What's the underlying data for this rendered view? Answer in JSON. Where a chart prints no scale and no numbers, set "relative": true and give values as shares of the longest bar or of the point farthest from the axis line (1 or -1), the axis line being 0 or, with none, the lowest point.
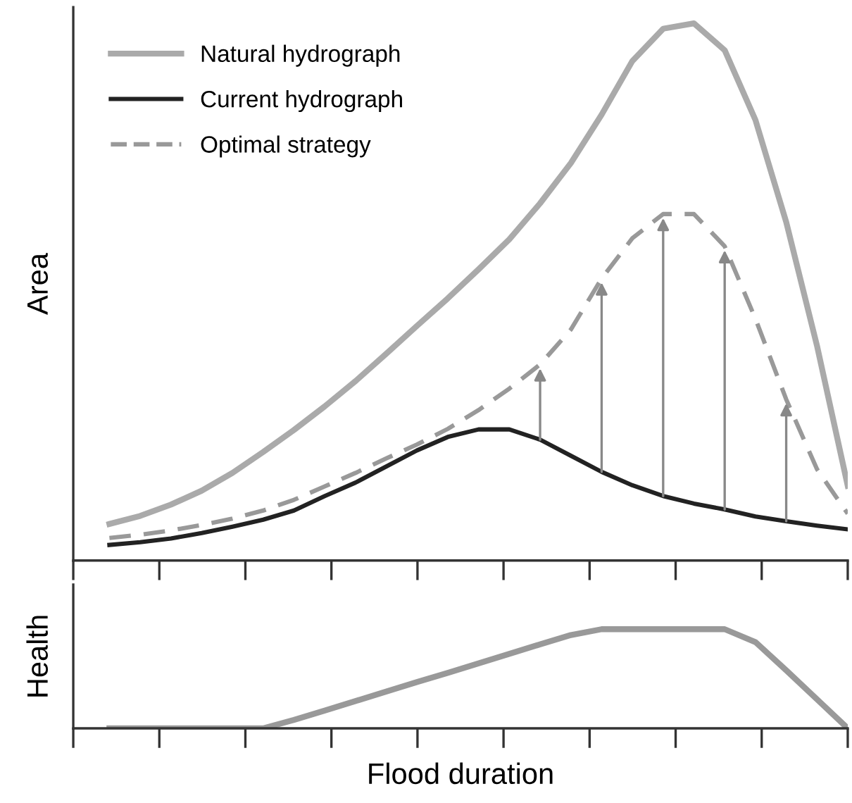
{
  "chart_data": [
    {
      "type": "line",
      "relative": true,
      "ylabel": "Area",
      "legend": "top left",
      "grid": false,
      "categories": [
        null,
        null,
        null,
        null,
        null,
        null,
        null,
        null,
        null,
        null,
        null,
        null,
        null,
        null,
        null,
        null,
        null,
        null,
        null,
        null,
        null,
        null,
        null,
        null,
        null
      ],
      "series": [
        {
          "name": "Natural hydrograph",
          "color": "#aaaaaa",
          "line_style": "solid",
          "values": [
            0.068,
            0.083,
            0.104,
            0.13,
            0.163,
            0.202,
            0.243,
            0.287,
            0.334,
            0.385,
            0.437,
            0.488,
            0.542,
            0.598,
            0.665,
            0.74,
            0.83,
            0.93,
            0.99,
            1,
            0.95,
            0.82,
            0.63,
            0.4,
            0.139
          ]
        },
        {
          "name": "Current hydrograph",
          "color": "#222222",
          "line_style": "solid",
          "values": [
            0.029,
            0.034,
            0.041,
            0.051,
            0.063,
            0.076,
            0.093,
            0.12,
            0.145,
            0.175,
            0.205,
            0.23,
            0.244,
            0.244,
            0.225,
            0.195,
            0.165,
            0.14,
            0.12,
            0.106,
            0.095,
            0.082,
            0.073,
            0.065,
            0.058
          ]
        },
        {
          "name": "Optimal strategy",
          "color": "#999999",
          "line_style": "dashed",
          "values": [
            0.042,
            0.048,
            0.056,
            0.066,
            0.078,
            0.093,
            0.113,
            0.138,
            0.163,
            0.19,
            0.216,
            0.245,
            0.28,
            0.32,
            0.365,
            0.43,
            0.525,
            0.6,
            0.645,
            0.645,
            0.585,
            0.45,
            0.3,
            0.17,
            0.087
          ]
        }
      ]
    },
    {
      "type": "line",
      "relative": true,
      "ylabel": "Health",
      "xlabel": "Flood duration",
      "grid": false,
      "categories": [
        null,
        null,
        null,
        null,
        null,
        null,
        null,
        null,
        null,
        null,
        null,
        null,
        null,
        null,
        null,
        null,
        null,
        null,
        null,
        null,
        null,
        null,
        null,
        null,
        null
      ],
      "series": [
        {
          "color": "#999999",
          "line_style": "solid",
          "values": [
            0,
            0,
            0,
            0,
            0,
            0,
            0.085,
            0.179,
            0.275,
            0.371,
            0.467,
            0.56,
            0.656,
            0.752,
            0.847,
            0.941,
            1,
            1,
            1,
            1,
            1,
            0.87,
            0.585,
            0.293,
            0
          ]
        }
      ]
    }
  ]
}
